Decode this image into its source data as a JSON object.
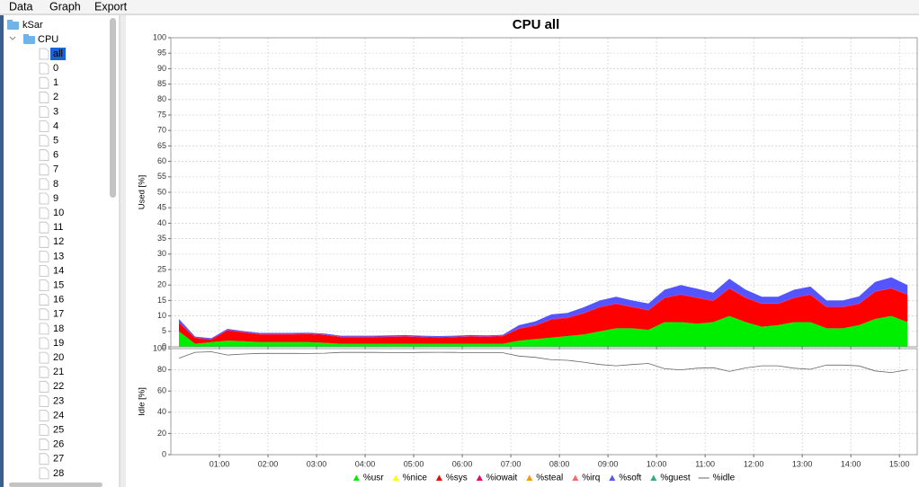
{
  "menu": [
    "Data",
    "Graph",
    "Export"
  ],
  "tree": {
    "root": "kSar",
    "group": "CPU",
    "items": [
      "all",
      "0",
      "1",
      "2",
      "3",
      "4",
      "5",
      "6",
      "7",
      "8",
      "9",
      "10",
      "11",
      "12",
      "13",
      "14",
      "15",
      "16",
      "17",
      "18",
      "19",
      "20",
      "21",
      "22",
      "23",
      "24",
      "25",
      "26",
      "27",
      "28"
    ]
  },
  "chart_data": [
    {
      "type": "area",
      "title": "CPU all",
      "ylabel": "Used [%]",
      "x": [
        10,
        30,
        50,
        70,
        90,
        110,
        130,
        150,
        170,
        190,
        210,
        230,
        250,
        270,
        290,
        310,
        330,
        350,
        370,
        390,
        410,
        430,
        450,
        470,
        490,
        510,
        530,
        550,
        570,
        590,
        610,
        630,
        650,
        670,
        690,
        710,
        730,
        750,
        770,
        790,
        810,
        830,
        850,
        870,
        890,
        910
      ],
      "xlim": [
        0,
        922
      ],
      "xticks": [
        {
          "value": 60,
          "label": "01:00"
        },
        {
          "value": 120,
          "label": "02:00"
        },
        {
          "value": 180,
          "label": "03:00"
        },
        {
          "value": 240,
          "label": "04:00"
        },
        {
          "value": 300,
          "label": "05:00"
        },
        {
          "value": 360,
          "label": "06:00"
        },
        {
          "value": 420,
          "label": "07:00"
        },
        {
          "value": 480,
          "label": "08:00"
        },
        {
          "value": 540,
          "label": "09:00"
        },
        {
          "value": 600,
          "label": "10:00"
        },
        {
          "value": 660,
          "label": "11:00"
        },
        {
          "value": 720,
          "label": "12:00"
        },
        {
          "value": 780,
          "label": "13:00"
        },
        {
          "value": 840,
          "label": "14:00"
        },
        {
          "value": 900,
          "label": "15:00"
        }
      ],
      "ylim": [
        0,
        100
      ],
      "yticks": [
        0,
        5,
        10,
        15,
        20,
        25,
        30,
        35,
        40,
        45,
        50,
        55,
        60,
        65,
        70,
        75,
        80,
        85,
        90,
        95,
        100
      ],
      "grid": true,
      "series": [
        {
          "name": "%usr",
          "color": "#00ee00",
          "values": [
            5,
            1,
            1.5,
            2,
            1.8,
            1.5,
            1.5,
            1.5,
            1.5,
            1.3,
            1,
            1,
            1,
            1,
            1,
            1,
            1,
            1,
            1,
            1,
            1,
            2,
            2.5,
            3,
            3.5,
            4,
            5,
            6,
            6,
            5.5,
            8,
            8,
            7.5,
            8,
            10,
            8,
            6.5,
            7,
            8,
            8,
            6,
            6,
            7,
            9,
            10,
            8
          ]
        },
        {
          "name": "%nice",
          "color": "#ffff00",
          "values": [
            0,
            0,
            0,
            0,
            0,
            0,
            0,
            0,
            0,
            0,
            0,
            0,
            0,
            0,
            0,
            0,
            0,
            0,
            0,
            0,
            0,
            0,
            0,
            0,
            0,
            0,
            0,
            0,
            0,
            0,
            0,
            0,
            0,
            0,
            0,
            0,
            0,
            0,
            0,
            0,
            0,
            0,
            0,
            0,
            0,
            0
          ]
        },
        {
          "name": "%sys",
          "color": "#ff0000",
          "values": [
            2.8,
            1.8,
            0.8,
            3.3,
            2.8,
            2.5,
            2.5,
            2.5,
            2.6,
            2.5,
            2.1,
            2.1,
            2.1,
            2.2,
            2.3,
            2.1,
            2.0,
            2.1,
            2.3,
            2.2,
            2.4,
            3.8,
            4.3,
            5.8,
            5.8,
            6.8,
            7.8,
            7.8,
            6.8,
            6.3,
            7.8,
            8.8,
            8.3,
            6.8,
            8.8,
            7.8,
            7.3,
            6.8,
            7.8,
            8.8,
            6.8,
            6.8,
            6.8,
            8.8,
            8.8,
            8.8
          ]
        },
        {
          "name": "%iowait",
          "color": "#ee0066",
          "values": [
            0.2,
            0.2,
            0.2,
            0.2,
            0.2,
            0.2,
            0.2,
            0.2,
            0.2,
            0.2,
            0.2,
            0.2,
            0.2,
            0.2,
            0.2,
            0.2,
            0.2,
            0.2,
            0.2,
            0.2,
            0.2,
            0.2,
            0.2,
            0.2,
            0.2,
            0.2,
            0.2,
            0.2,
            0.2,
            0.2,
            0.2,
            0.2,
            0.2,
            0.2,
            0.2,
            0.2,
            0.2,
            0.2,
            0.2,
            0.2,
            0.2,
            0.2,
            0.2,
            0.2,
            0.2,
            0.2
          ]
        },
        {
          "name": "%steal",
          "color": "#ff9900",
          "values": [
            0,
            0,
            0,
            0,
            0,
            0,
            0,
            0,
            0,
            0,
            0,
            0,
            0,
            0,
            0,
            0,
            0,
            0,
            0,
            0,
            0,
            0,
            0,
            0,
            0,
            0,
            0,
            0,
            0,
            0,
            0,
            0,
            0,
            0,
            0,
            0,
            0,
            0,
            0,
            0,
            0,
            0,
            0,
            0,
            0,
            0
          ]
        },
        {
          "name": "%irq",
          "color": "#ff6666",
          "values": [
            0,
            0,
            0,
            0,
            0,
            0,
            0,
            0,
            0,
            0,
            0,
            0,
            0,
            0,
            0,
            0,
            0,
            0,
            0,
            0,
            0,
            0,
            0,
            0,
            0,
            0,
            0,
            0,
            0,
            0,
            0,
            0,
            0,
            0,
            0,
            0,
            0,
            0,
            0,
            0,
            0,
            0,
            0,
            0,
            0,
            0
          ]
        },
        {
          "name": "%soft",
          "color": "#5555ff",
          "values": [
            1,
            0.3,
            0.3,
            0.3,
            0.3,
            0.3,
            0.3,
            0.3,
            0.3,
            0.3,
            0.3,
            0.3,
            0.3,
            0.3,
            0.3,
            0.3,
            0.3,
            0.3,
            0.3,
            0.3,
            0.3,
            1,
            1.2,
            1.5,
            1.5,
            1.8,
            2,
            2.2,
            2,
            2,
            2.5,
            3,
            2.8,
            2.5,
            3,
            2.5,
            2.2,
            2.2,
            2.5,
            2.5,
            2,
            2,
            2.3,
            3,
            3.5,
            3
          ]
        },
        {
          "name": "%guest",
          "color": "#33aa88",
          "values": [
            0,
            0,
            0,
            0,
            0,
            0,
            0,
            0,
            0,
            0,
            0,
            0,
            0,
            0,
            0,
            0,
            0,
            0,
            0,
            0,
            0,
            0,
            0,
            0,
            0,
            0,
            0,
            0,
            0,
            0,
            0,
            0,
            0,
            0,
            0,
            0,
            0,
            0,
            0,
            0,
            0,
            0,
            0,
            0,
            0,
            0
          ]
        }
      ]
    },
    {
      "type": "line",
      "ylabel": "Idle [%]",
      "x": [
        10,
        30,
        50,
        70,
        90,
        110,
        130,
        150,
        170,
        190,
        210,
        230,
        250,
        270,
        290,
        310,
        330,
        350,
        370,
        390,
        410,
        430,
        450,
        470,
        490,
        510,
        530,
        550,
        570,
        590,
        610,
        630,
        650,
        670,
        690,
        710,
        730,
        750,
        770,
        790,
        810,
        830,
        850,
        870,
        890,
        910
      ],
      "xlim": [
        0,
        922
      ],
      "xticks": [
        {
          "value": 60,
          "label": "01:00"
        },
        {
          "value": 120,
          "label": "02:00"
        },
        {
          "value": 180,
          "label": "03:00"
        },
        {
          "value": 240,
          "label": "04:00"
        },
        {
          "value": 300,
          "label": "05:00"
        },
        {
          "value": 360,
          "label": "06:00"
        },
        {
          "value": 420,
          "label": "07:00"
        },
        {
          "value": 480,
          "label": "08:00"
        },
        {
          "value": 540,
          "label": "09:00"
        },
        {
          "value": 600,
          "label": "10:00"
        },
        {
          "value": 660,
          "label": "11:00"
        },
        {
          "value": 720,
          "label": "12:00"
        },
        {
          "value": 780,
          "label": "13:00"
        },
        {
          "value": 840,
          "label": "14:00"
        },
        {
          "value": 900,
          "label": "15:00"
        }
      ],
      "ylim": [
        0,
        100
      ],
      "yticks": [
        0,
        20,
        40,
        60,
        80,
        100
      ],
      "grid": true,
      "series": [
        {
          "name": "%idle",
          "color": "#666666",
          "values": [
            91,
            96.5,
            97,
            94,
            94.9,
            95.5,
            95.5,
            95.5,
            95.4,
            95.7,
            96.4,
            96.4,
            96.4,
            96.3,
            96.2,
            96.4,
            96.5,
            96.4,
            96.2,
            96.3,
            96.1,
            93,
            91.8,
            89.5,
            89,
            87.2,
            85,
            83.8,
            85,
            86,
            81,
            80,
            81.5,
            82,
            78.5,
            81.8,
            83.8,
            83.8,
            81.5,
            80.5,
            84.5,
            84.5,
            83.7,
            79,
            77.5,
            80
          ]
        }
      ]
    }
  ]
}
